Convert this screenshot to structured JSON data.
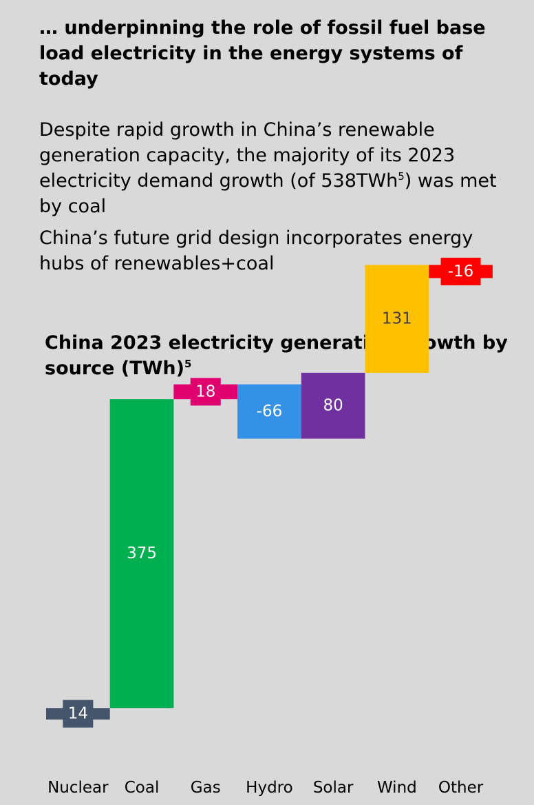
{
  "heading": "… underpinning the role of fossil fuel base load electricity in the energy systems of today",
  "paragraphs": [
    {
      "text": "Despite rapid growth in China’s renewable generation capacity, the majority of its 2023 electricity demand growth (of 538TWh",
      "sup": "5",
      "tail": ") was met by coal"
    },
    {
      "text": "China’s future grid design incorporates energy hubs of renewables+coal"
    }
  ],
  "chart_data": {
    "type": "bar",
    "title": "China 2023 electricity generation growth by source (TWh)",
    "title_sup": "5",
    "categories": [
      "Nuclear",
      "Coal",
      "Gas",
      "Hydro",
      "Solar",
      "Wind",
      "Other"
    ],
    "values": [
      14,
      375,
      18,
      -66,
      80,
      131,
      -16
    ],
    "labels": [
      "14",
      "375",
      "18",
      "-66",
      "80",
      "131",
      "-16"
    ],
    "colors": [
      "#44546a",
      "#00b050",
      "#e0006e",
      "#3591e6",
      "#7030a0",
      "#ffc000",
      "#ff0000"
    ],
    "label_colors": [
      "#ffffff",
      "#ffffff",
      "#ffffff",
      "#ffffff",
      "#ffffff",
      "#404040",
      "#ffffff"
    ]
  }
}
